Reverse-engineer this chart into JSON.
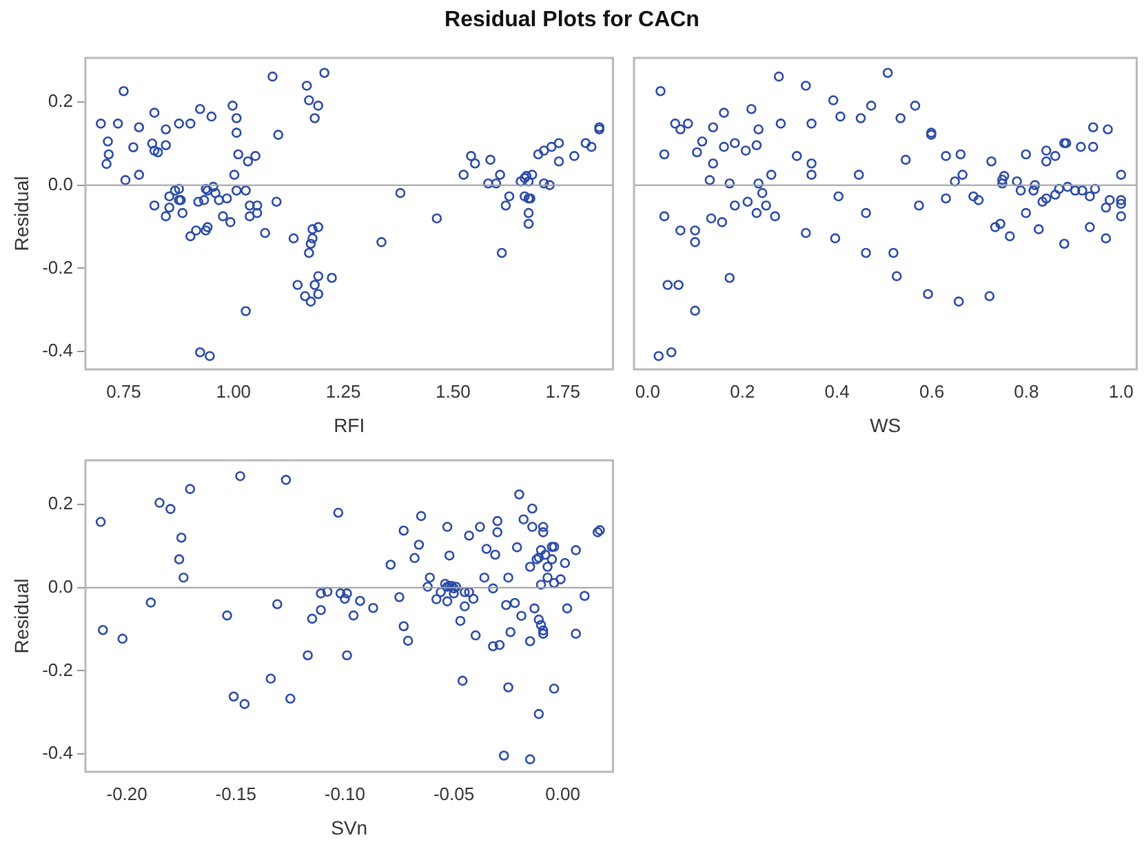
{
  "chart_data": [
    {
      "type": "scatter",
      "title": "Residual Plots for CACn",
      "xlabel": "RFI",
      "ylabel": "Residual",
      "color": "#2a4aa8",
      "marker": "circle",
      "xlim": [
        0.663,
        1.864
      ],
      "ylim": [
        -0.443,
        0.306
      ],
      "xticks": [
        0.75,
        {
          "value": 1,
          "label": "1.00"
        },
        1.25,
        {
          "value": 1.5,
          "label": "1.50"
        },
        1.75
      ],
      "yticks": [
        -0.4,
        -0.2,
        {
          "value": 0,
          "label": "0.0"
        },
        0.2
      ],
      "ref_lines": [
        {
          "axis": "y",
          "value": 0,
          "color": "#a0a0a0"
        }
      ],
      "x": [
        0.698,
        0.714,
        0.716,
        0.711,
        0.737,
        0.75,
        0.754,
        0.772,
        0.785,
        0.785,
        0.82,
        0.815,
        0.82,
        0.828,
        0.846,
        0.846,
        0.82,
        0.846,
        0.854,
        0.854,
        0.867,
        0.876,
        0.876,
        0.876,
        0.88,
        0.884,
        0.902,
        0.902,
        0.915,
        0.92,
        0.924,
        0.933,
        0.937,
        0.937,
        0.941,
        0.941,
        0.95,
        0.954,
        0.959,
        0.967,
        0.976,
        0.985,
        0.993,
        0.998,
        1.007,
        1.007,
        1.002,
        1.007,
        1.011,
        1.028,
        1.033,
        1.037,
        1.037,
        1.05,
        1.054,
        1.054,
        1.072,
        1.028,
        0.924,
        0.946,
        1.089,
        1.098,
        1.102,
        1.137,
        1.146,
        1.163,
        1.167,
        1.172,
        1.172,
        1.176,
        1.176,
        1.18,
        1.18,
        1.185,
        1.185,
        1.193,
        1.193,
        1.193,
        1.193,
        1.207,
        1.224,
        1.337,
        1.38,
        1.463,
        1.524,
        1.541,
        1.55,
        1.585,
        1.58,
        1.598,
        1.607,
        1.611,
        1.62,
        1.628,
        1.654,
        1.663,
        1.667,
        1.672,
        1.68,
        1.663,
        1.672,
        1.676,
        1.672,
        1.672,
        1.694,
        1.707,
        1.707,
        1.72,
        1.724,
        1.741,
        1.741,
        1.776,
        1.802,
        1.815,
        1.833,
        1.833
      ],
      "values": [
        0.148,
        0.105,
        0.074,
        0.051,
        0.148,
        0.226,
        0.012,
        0.091,
        0.139,
        0.025,
        0.174,
        0.1,
        0.083,
        0.079,
        0.134,
        0.096,
        -0.049,
        -0.075,
        -0.027,
        -0.054,
        -0.013,
        -0.009,
        0.148,
        -0.036,
        -0.036,
        -0.067,
        0.148,
        -0.123,
        -0.109,
        -0.04,
        0.183,
        -0.036,
        -0.009,
        -0.109,
        -0.101,
        -0.013,
        0.165,
        -0.004,
        -0.019,
        -0.036,
        -0.075,
        -0.032,
        -0.089,
        0.191,
        0.161,
        0.126,
        0.025,
        -0.013,
        0.074,
        -0.013,
        0.057,
        -0.049,
        -0.075,
        0.07,
        -0.049,
        -0.067,
        -0.115,
        -0.303,
        -0.402,
        -0.411,
        0.261,
        -0.04,
        0.121,
        -0.128,
        -0.24,
        -0.267,
        0.239,
        0.204,
        -0.163,
        -0.141,
        -0.28,
        -0.128,
        -0.106,
        0.161,
        -0.24,
        0.191,
        -0.101,
        -0.219,
        -0.262,
        0.27,
        -0.223,
        -0.137,
        -0.019,
        -0.08,
        0.025,
        0.07,
        0.052,
        0.061,
        0.004,
        0.004,
        0.025,
        -0.163,
        -0.049,
        -0.027,
        0.009,
        0.017,
        0.022,
        0.009,
        0.025,
        -0.027,
        -0.032,
        -0.032,
        -0.067,
        -0.093,
        0.074,
        0.083,
        0.004,
        0.0,
        0.092,
        0.101,
        0.057,
        0.07,
        0.101,
        0.092,
        0.139,
        0.134
      ]
    },
    {
      "type": "scatter",
      "xlabel": "WS",
      "color": "#2a4aa8",
      "marker": "circle",
      "tick_labels": "x",
      "xlim": [
        -0.029,
        1.033
      ],
      "ylim": [
        -0.443,
        0.306
      ],
      "xticks": [
        {
          "value": 0,
          "label": "0.0"
        },
        0.2,
        0.4,
        0.6,
        0.8,
        {
          "value": 1,
          "label": "1.0"
        }
      ],
      "ref_lines": [
        {
          "axis": "y",
          "value": 0,
          "color": "#a0a0a0"
        }
      ],
      "x": [
        0.027,
        0.035,
        0.035,
        0.042,
        0.023,
        0.05,
        0.058,
        0.065,
        0.069,
        0.069,
        0.085,
        0.1,
        0.1,
        0.1,
        0.104,
        0.115,
        0.131,
        0.134,
        0.138,
        0.138,
        0.157,
        0.161,
        0.161,
        0.173,
        0.173,
        0.184,
        0.184,
        0.207,
        0.211,
        0.219,
        0.23,
        0.23,
        0.234,
        0.234,
        0.242,
        0.25,
        0.261,
        0.269,
        0.277,
        0.281,
        0.315,
        0.334,
        0.334,
        0.346,
        0.346,
        0.346,
        0.392,
        0.396,
        0.403,
        0.407,
        0.446,
        0.45,
        0.461,
        0.461,
        0.472,
        0.507,
        0.519,
        0.526,
        0.534,
        0.545,
        0.565,
        0.573,
        0.592,
        0.599,
        0.599,
        0.63,
        0.63,
        0.649,
        0.657,
        0.661,
        0.665,
        0.688,
        0.699,
        0.722,
        0.726,
        0.734,
        0.745,
        0.749,
        0.749,
        0.753,
        0.765,
        0.78,
        0.788,
        0.799,
        0.799,
        0.815,
        0.818,
        0.826,
        0.834,
        0.842,
        0.842,
        0.842,
        0.861,
        0.861,
        0.869,
        0.88,
        0.884,
        0.88,
        0.887,
        0.903,
        0.915,
        0.918,
        0.934,
        0.934,
        0.941,
        0.941,
        0.945,
        0.968,
        0.968,
        0.972,
        0.976,
        1.0,
        1.0,
        1.0,
        1.0
      ],
      "values": [
        0.226,
        0.074,
        -0.075,
        -0.24,
        -0.411,
        -0.402,
        0.148,
        -0.24,
        0.134,
        -0.109,
        0.148,
        -0.109,
        -0.137,
        -0.302,
        0.079,
        0.105,
        0.012,
        -0.08,
        0.139,
        0.052,
        -0.089,
        0.174,
        0.092,
        0.004,
        -0.223,
        0.101,
        -0.049,
        0.083,
        -0.04,
        0.183,
        0.096,
        -0.067,
        0.004,
        0.134,
        -0.019,
        -0.049,
        0.025,
        -0.075,
        0.261,
        0.148,
        0.07,
        0.239,
        -0.115,
        0.148,
        0.052,
        0.025,
        0.204,
        -0.128,
        -0.027,
        0.165,
        0.025,
        0.161,
        -0.067,
        -0.163,
        0.191,
        0.27,
        -0.163,
        -0.219,
        0.161,
        0.061,
        0.191,
        -0.049,
        -0.262,
        0.126,
        0.121,
        0.07,
        -0.032,
        0.009,
        -0.28,
        0.074,
        0.025,
        -0.027,
        -0.036,
        -0.267,
        0.057,
        -0.101,
        -0.093,
        0.013,
        0.004,
        0.022,
        -0.123,
        0.009,
        -0.013,
        0.074,
        -0.067,
        -0.013,
        0.0,
        -0.106,
        -0.04,
        -0.032,
        0.083,
        0.057,
        0.07,
        -0.023,
        -0.009,
        0.101,
        0.101,
        -0.141,
        -0.004,
        -0.013,
        0.092,
        -0.013,
        -0.027,
        -0.101,
        0.139,
        0.092,
        -0.009,
        -0.054,
        -0.128,
        0.134,
        -0.036,
        0.025,
        -0.036,
        -0.045,
        -0.075
      ]
    },
    {
      "type": "scatter",
      "xlabel": "SVn",
      "ylabel": "Residual",
      "color": "#2a4aa8",
      "marker": "circle",
      "xlim": [
        -0.219,
        0.023
      ],
      "ylim": [
        -0.443,
        0.306
      ],
      "xticks": [
        {
          "value": -0.2,
          "label": "-0.20"
        },
        -0.15,
        {
          "value": -0.1,
          "label": "-0.10"
        },
        -0.05,
        {
          "value": 0,
          "label": "0.00"
        }
      ],
      "yticks": [
        -0.4,
        -0.2,
        {
          "value": 0,
          "label": "0.0"
        },
        0.2
      ],
      "ref_lines": [
        {
          "axis": "y",
          "value": 0,
          "color": "#a0a0a0"
        }
      ],
      "x": [
        -0.212,
        -0.211,
        -0.202,
        -0.189,
        -0.185,
        -0.18,
        -0.171,
        -0.175,
        -0.176,
        -0.174,
        -0.154,
        -0.148,
        -0.151,
        -0.146,
        -0.134,
        -0.131,
        -0.127,
        -0.125,
        -0.117,
        -0.115,
        -0.111,
        -0.111,
        -0.108,
        -0.103,
        -0.102,
        -0.1,
        -0.099,
        -0.099,
        -0.096,
        -0.093,
        -0.087,
        -0.079,
        -0.075,
        -0.073,
        -0.073,
        -0.071,
        -0.068,
        -0.066,
        -0.065,
        -0.062,
        -0.061,
        -0.058,
        -0.056,
        -0.054,
        -0.053,
        -0.053,
        -0.053,
        -0.052,
        -0.052,
        -0.051,
        -0.05,
        -0.05,
        -0.049,
        -0.047,
        -0.046,
        -0.045,
        -0.045,
        -0.043,
        -0.043,
        -0.041,
        -0.04,
        -0.038,
        -0.036,
        -0.035,
        -0.032,
        -0.031,
        -0.032,
        -0.03,
        -0.03,
        -0.029,
        -0.027,
        -0.026,
        -0.025,
        -0.025,
        -0.024,
        -0.022,
        -0.021,
        -0.02,
        -0.019,
        -0.018,
        -0.015,
        -0.015,
        -0.015,
        -0.014,
        -0.014,
        -0.013,
        -0.012,
        -0.011,
        -0.011,
        -0.011,
        -0.01,
        -0.01,
        -0.01,
        -0.009,
        -0.009,
        -0.009,
        -0.009,
        -0.008,
        -0.007,
        -0.007,
        -0.005,
        -0.005,
        -0.004,
        -0.004,
        -0.004,
        -0.001,
        0.001,
        0.002,
        0.006,
        0.006,
        0.01,
        0.016,
        0.017
      ],
      "values": [
        0.158,
        -0.102,
        -0.123,
        -0.036,
        0.204,
        0.189,
        0.237,
        0.12,
        0.068,
        0.024,
        -0.067,
        0.268,
        -0.262,
        -0.28,
        -0.219,
        -0.04,
        0.259,
        -0.267,
        -0.163,
        -0.075,
        -0.054,
        -0.014,
        -0.01,
        0.18,
        -0.014,
        -0.027,
        -0.163,
        -0.014,
        -0.067,
        -0.032,
        -0.049,
        0.055,
        -0.023,
        0.137,
        -0.093,
        -0.128,
        0.071,
        0.103,
        0.172,
        0.002,
        0.024,
        -0.028,
        -0.011,
        0.009,
        -0.033,
        0.002,
        0.146,
        0.077,
        0.004,
        0.004,
        -0.002,
        -0.014,
        0.002,
        -0.08,
        -0.224,
        -0.045,
        -0.011,
        0.125,
        -0.011,
        -0.027,
        -0.115,
        0.146,
        0.024,
        0.093,
        -0.002,
        0.079,
        -0.141,
        0.16,
        0.133,
        -0.138,
        -0.404,
        -0.042,
        0.024,
        -0.24,
        -0.107,
        -0.037,
        0.097,
        0.224,
        -0.068,
        0.164,
        0.05,
        -0.129,
        -0.413,
        0.146,
        0.19,
        -0.05,
        0.068,
        0.072,
        -0.304,
        -0.077,
        0.007,
        -0.09,
        0.09,
        -0.103,
        -0.111,
        0.146,
        0.133,
        0.079,
        0.024,
        0.05,
        0.098,
        0.068,
        0.098,
        -0.243,
        0.011,
        0.02,
        0.059,
        -0.05,
        0.09,
        -0.111,
        -0.02,
        0.133,
        0.138
      ]
    }
  ]
}
